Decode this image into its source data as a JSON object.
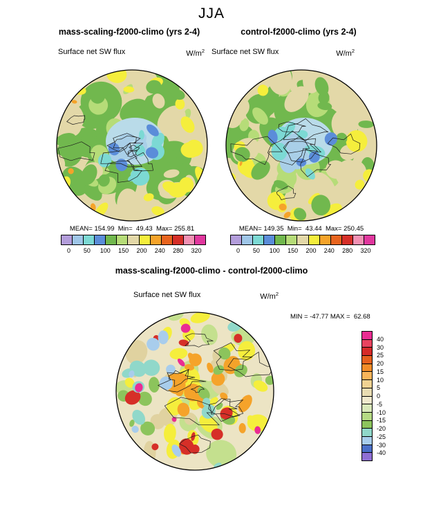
{
  "page_title": "JJA",
  "panels": {
    "left": {
      "title": "mass-scaling-f2000-climo (yrs 2-4)",
      "field_label": "Surface net SW flux",
      "units": "W/m",
      "units_exp": "2",
      "stats": "MEAN= 154.99  Min=  49.43  Max= 255.81"
    },
    "right": {
      "title": "control-f2000-climo (yrs 2-4)",
      "field_label": "Surface net SW flux",
      "units": "W/m",
      "units_exp": "2",
      "stats": "MEAN= 149.35  Min=  43.44  Max= 250.45"
    },
    "diff": {
      "title": "mass-scaling-f2000-climo - control-f2000-climo",
      "field_label": "Surface net SW flux",
      "units": "W/m",
      "units_exp": "2",
      "minmax": "MIN = -47.77 MAX =  62.68"
    }
  },
  "flux_colorbar": {
    "colors": [
      "#b39ddb",
      "#9fc6e8",
      "#7cd9d4",
      "#5b8dd9",
      "#71b84e",
      "#b6dc78",
      "#e3d8a8",
      "#f5ee3c",
      "#f5a32a",
      "#e8641e",
      "#d62f28",
      "#f291b4",
      "#e1379e"
    ],
    "ticks": [
      "0",
      "50",
      "100",
      "150",
      "200",
      "240",
      "280",
      "320"
    ]
  },
  "diff_colorbar": {
    "colors": [
      "#ea2c92",
      "#e8435f",
      "#d62a28",
      "#e6601e",
      "#f28c28",
      "#f8b45a",
      "#f0d292",
      "#e8dcb2",
      "#efe9cd",
      "#d9e9ba",
      "#b5da84",
      "#8cc45c",
      "#90d8ca",
      "#a8cdec",
      "#4a6fc8",
      "#8f6fd4"
    ],
    "labels": [
      "40",
      "30",
      "25",
      "20",
      "15",
      "10",
      "5",
      "0",
      "-5",
      "-10",
      "-15",
      "-20",
      "-25",
      "-30",
      "-40"
    ]
  },
  "map_colors": {
    "top_base": "#e3d8a8",
    "green": "#71b84e",
    "light_green": "#b6dc78",
    "tan": "#e3d8a8",
    "yellow": "#f5ee3c",
    "pale_blue": "#a9cfe8",
    "center_blue": "#b9dbe9",
    "cyan": "#7cd9d4",
    "blue": "#5b8dd9",
    "orange": "#f5a32a",
    "diff_base": "#ece4c4",
    "diff_tan": "#e0d2a0",
    "diff_light_green": "#c4e08e",
    "diff_green": "#8cc45c",
    "diff_yellow": "#f5ee3c",
    "diff_orange": "#f5a32a",
    "diff_red": "#d62f28",
    "diff_magenta": "#ea2c92",
    "diff_cyan": "#90d8ca",
    "diff_light_blue": "#a8cdec",
    "coast": "#1a1a1a"
  },
  "chart_data": [
    {
      "type": "heatmap",
      "projection": "polar-stereographic-north",
      "season": "JJA",
      "title": "mass-scaling-f2000-climo (yrs 2-4)",
      "variable": "Surface net SW flux",
      "units": "W/m2",
      "mean": 154.99,
      "min": 49.43,
      "max": 255.81,
      "contour_levels": [
        0,
        50,
        100,
        150,
        200,
        240,
        280,
        320
      ],
      "legend_position": "below"
    },
    {
      "type": "heatmap",
      "projection": "polar-stereographic-north",
      "season": "JJA",
      "title": "control-f2000-climo (yrs 2-4)",
      "variable": "Surface net SW flux",
      "units": "W/m2",
      "mean": 149.35,
      "min": 43.44,
      "max": 250.45,
      "contour_levels": [
        0,
        50,
        100,
        150,
        200,
        240,
        280,
        320
      ],
      "legend_position": "below"
    },
    {
      "type": "heatmap",
      "projection": "polar-stereographic-north",
      "season": "JJA",
      "title": "mass-scaling-f2000-climo - control-f2000-climo",
      "variable": "Surface net SW flux",
      "units": "W/m2",
      "min": -47.77,
      "max": 62.68,
      "contour_levels": [
        40,
        30,
        25,
        20,
        15,
        10,
        5,
        0,
        -5,
        -10,
        -15,
        -20,
        -25,
        -30,
        -40
      ],
      "legend_position": "right"
    }
  ]
}
